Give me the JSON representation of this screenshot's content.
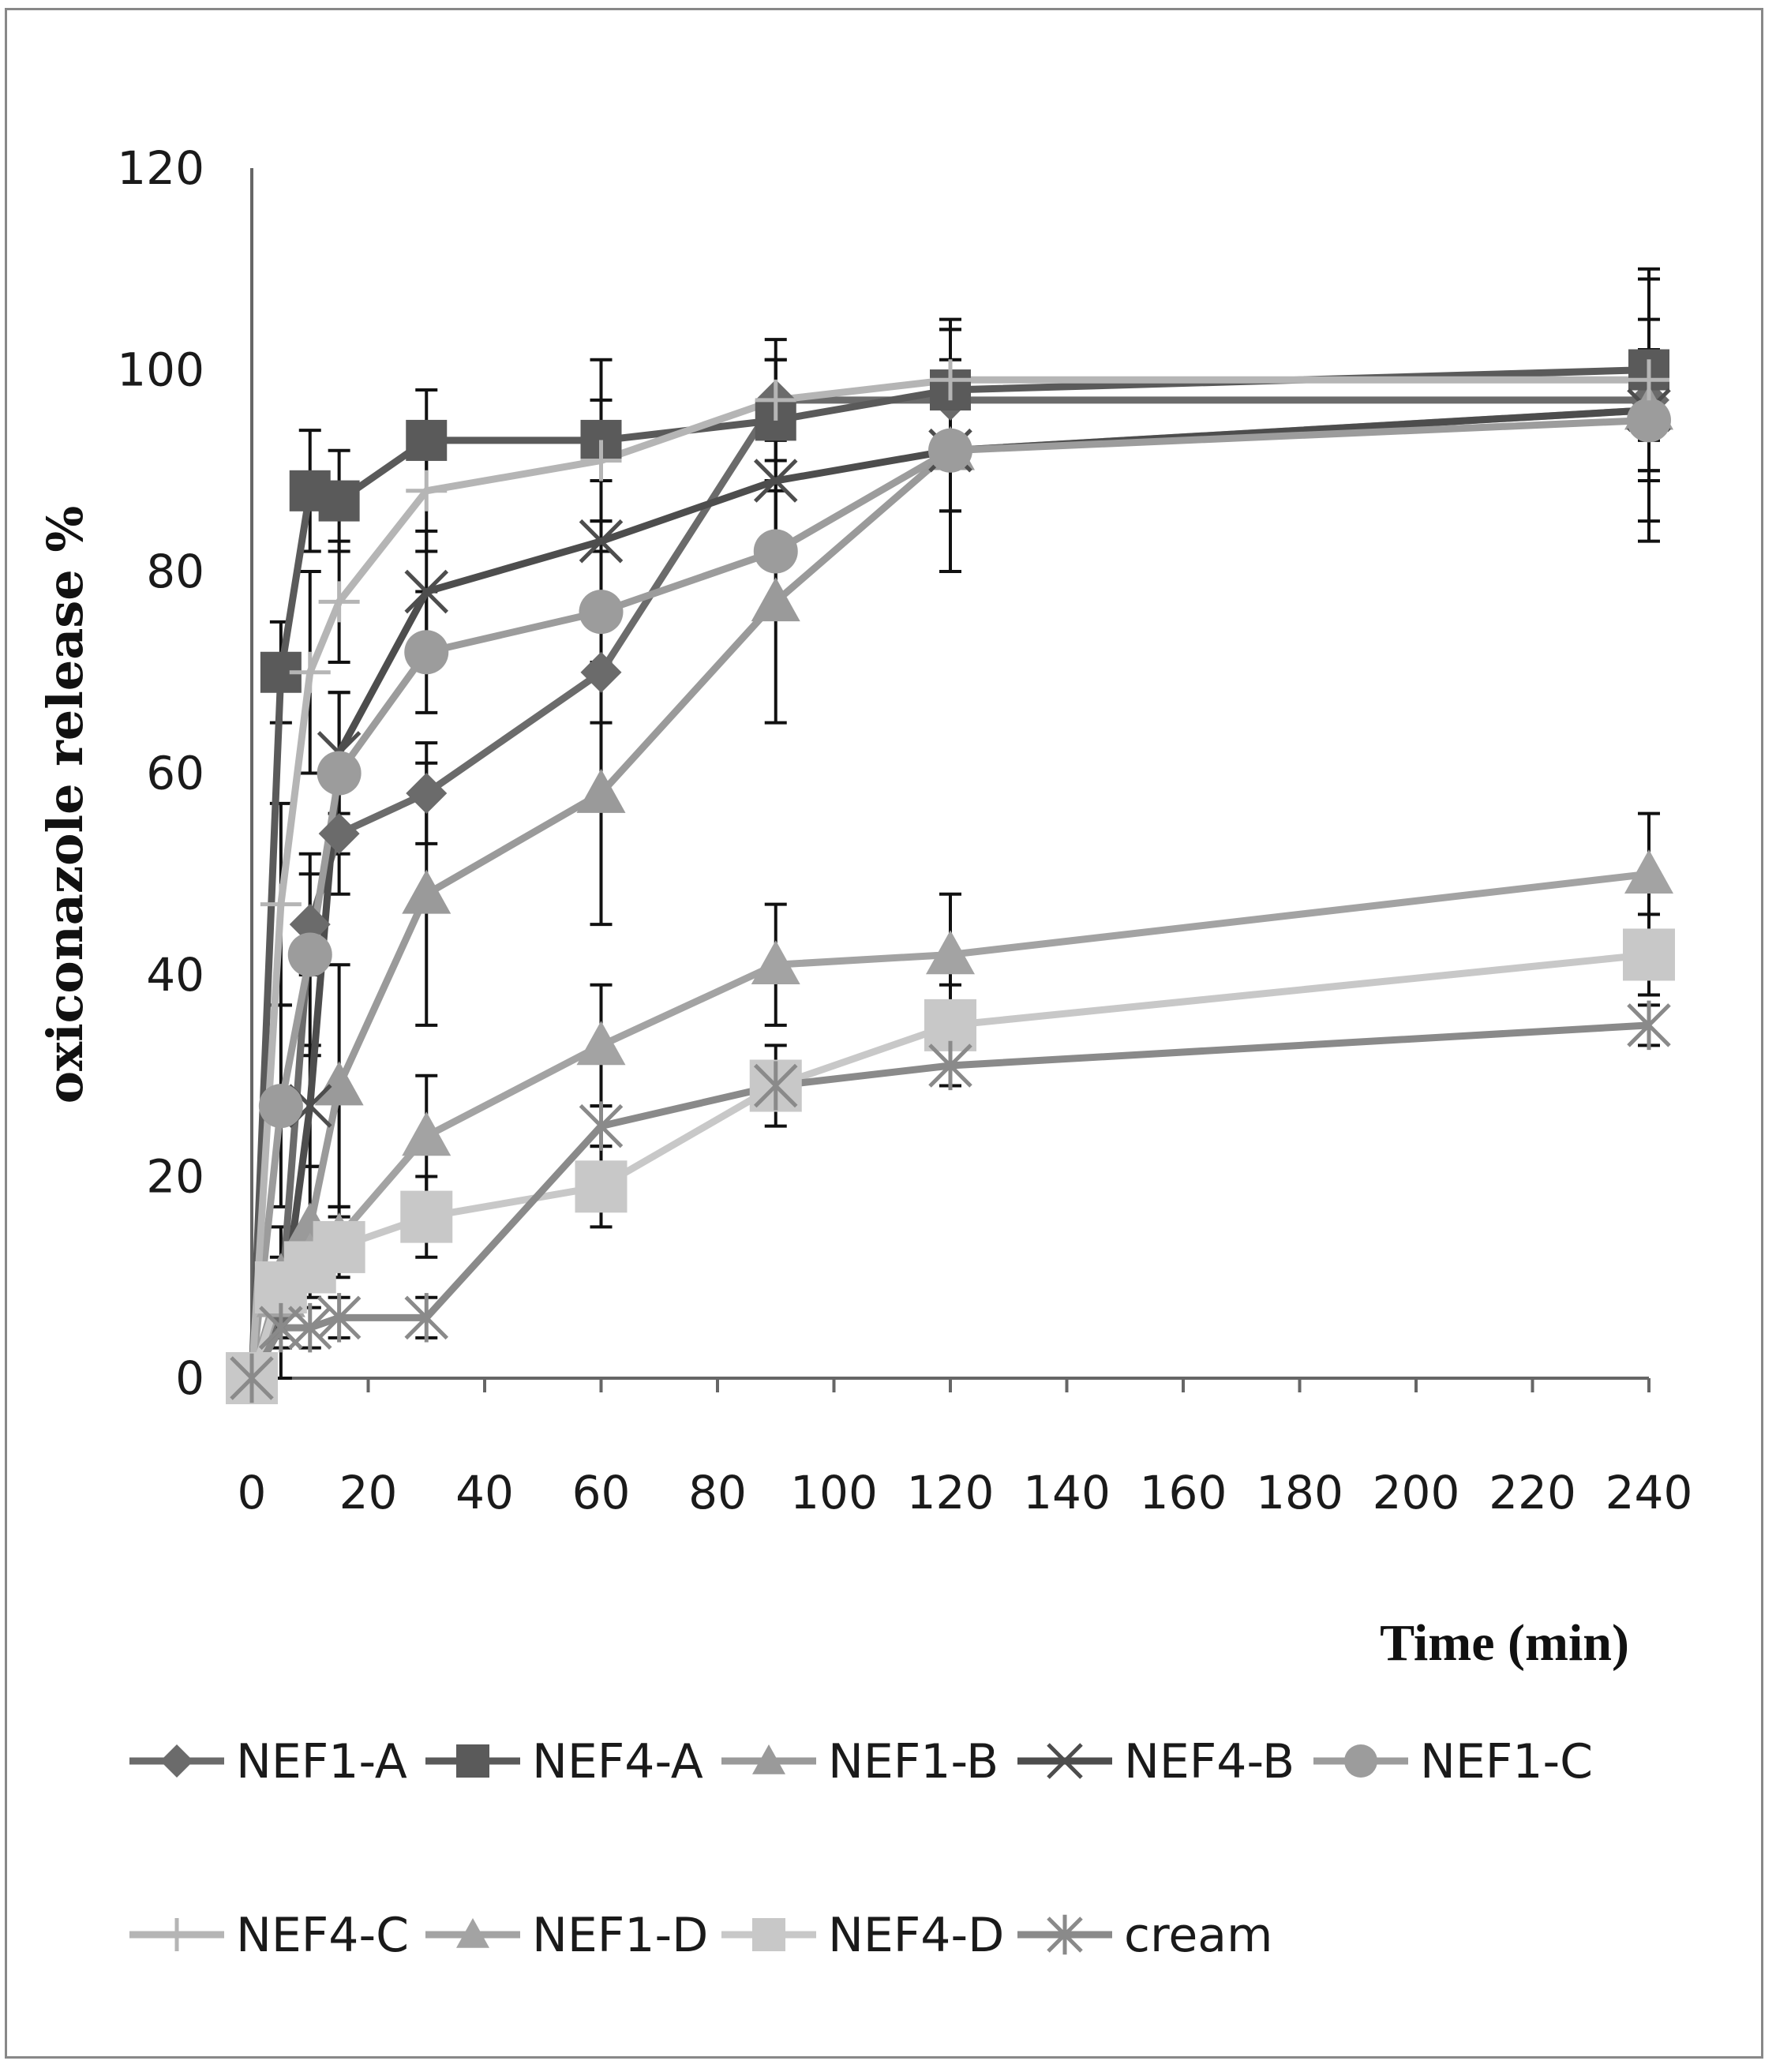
{
  "chart_data": {
    "type": "line",
    "title": "",
    "xlabel": "Time (min)",
    "ylabel": "oxiconazole release %",
    "xlim": [
      0,
      240
    ],
    "ylim": [
      0,
      120
    ],
    "x_ticks": [
      0,
      20,
      40,
      60,
      80,
      100,
      120,
      140,
      160,
      180,
      200,
      220,
      240
    ],
    "y_ticks": [
      0,
      20,
      40,
      60,
      80,
      100,
      120
    ],
    "grid": false,
    "legend_position": "bottom",
    "x": [
      0,
      5,
      10,
      15,
      30,
      60,
      90,
      120,
      240
    ],
    "series": [
      {
        "name": "NEF1-A",
        "marker": "diamond",
        "color": "#6b6b6b",
        "values": [
          0,
          7,
          45,
          54,
          58,
          70,
          97,
          97,
          97
        ],
        "errors": [
          0,
          3,
          5,
          6,
          5,
          5,
          4,
          4,
          12
        ]
      },
      {
        "name": "NEF4-A",
        "marker": "square",
        "color": "#5a5a5a",
        "values": [
          0,
          70,
          88,
          87,
          93,
          93,
          95,
          98,
          100
        ],
        "errors": [
          0,
          5,
          6,
          5,
          5,
          8,
          6,
          6,
          10
        ]
      },
      {
        "name": "NEF1-B",
        "marker": "triangle",
        "color": "#9a9a9a",
        "values": [
          0,
          10,
          15,
          29,
          48,
          58,
          77,
          92,
          96
        ],
        "errors": [
          0,
          5,
          6,
          12,
          13,
          13,
          12,
          12,
          13
        ]
      },
      {
        "name": "NEF4-B",
        "marker": "x",
        "color": "#4d4d4d",
        "values": [
          0,
          5,
          27,
          62,
          78,
          83,
          89,
          92,
          96
        ],
        "errors": [
          0,
          5,
          6,
          6,
          6,
          6,
          6,
          6,
          6
        ]
      },
      {
        "name": "NEF1-C",
        "marker": "circle",
        "color": "#9c9c9c",
        "values": [
          0,
          27,
          42,
          60,
          72,
          76,
          82,
          92,
          95
        ],
        "errors": [
          0,
          10,
          10,
          8,
          6,
          6,
          6,
          6,
          6
        ]
      },
      {
        "name": "NEF4-C",
        "marker": "plus",
        "color": "#b5b5b5",
        "values": [
          0,
          47,
          70,
          77,
          88,
          91,
          97,
          99,
          99
        ],
        "errors": [
          0,
          10,
          10,
          6,
          6,
          6,
          6,
          6,
          6
        ]
      },
      {
        "name": "NEF1-D",
        "marker": "triangle",
        "color": "#a3a3a3",
        "values": [
          0,
          8,
          12,
          14,
          24,
          33,
          41,
          42,
          50
        ],
        "errors": [
          0,
          3,
          3,
          3,
          6,
          6,
          6,
          6,
          6
        ]
      },
      {
        "name": "NEF4-D",
        "marker": "square",
        "color": "#c8c8c8",
        "values": [
          0,
          9,
          11,
          13,
          16,
          19,
          29,
          35,
          42
        ],
        "errors": [
          0,
          3,
          3,
          3,
          4,
          4,
          4,
          4,
          4
        ]
      },
      {
        "name": "cream",
        "marker": "star",
        "color": "#8a8a8a",
        "values": [
          0,
          5,
          5,
          6,
          6,
          25,
          29,
          31,
          35
        ],
        "errors": [
          0,
          2,
          2,
          2,
          2,
          2,
          2,
          2,
          2
        ]
      }
    ]
  }
}
